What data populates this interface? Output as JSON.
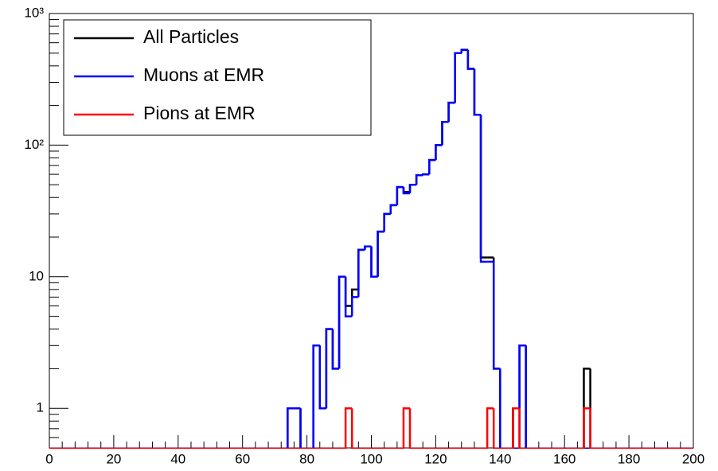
{
  "chart_data": {
    "type": "histogram",
    "log_y": true,
    "bins": [
      0,
      2,
      4,
      6,
      8,
      10,
      12,
      14,
      16,
      18,
      20,
      22,
      24,
      26,
      28,
      30,
      32,
      34,
      36,
      38,
      40,
      42,
      44,
      46,
      48,
      50,
      52,
      54,
      56,
      58,
      60,
      62,
      64,
      66,
      68,
      70,
      72,
      74,
      76,
      78,
      80,
      82,
      84,
      86,
      88,
      90,
      92,
      94,
      96,
      98,
      100,
      102,
      104,
      106,
      108,
      110,
      112,
      114,
      116,
      118,
      120,
      122,
      124,
      126,
      128,
      130,
      132,
      134,
      136,
      138,
      140,
      142,
      144,
      146,
      148,
      150,
      152,
      154,
      156,
      158,
      160,
      162,
      164,
      166,
      168,
      170,
      172,
      174,
      176,
      178,
      180,
      182,
      184,
      186,
      188,
      190,
      192,
      194,
      196,
      198,
      200
    ],
    "series": [
      {
        "name": "All Particles",
        "color": "#000000",
        "values": [
          0,
          0,
          0,
          0,
          0,
          0,
          0,
          0,
          0,
          0,
          0,
          0,
          0,
          0,
          0,
          0,
          0,
          0,
          0,
          0,
          0,
          0,
          0,
          0,
          0,
          0,
          0,
          0,
          0,
          0,
          0,
          0,
          0,
          0,
          0,
          0,
          0,
          1,
          1,
          0,
          0,
          3,
          1,
          4,
          2,
          10,
          6,
          8,
          16,
          17,
          10,
          22,
          30,
          35,
          48,
          44,
          50,
          59,
          60,
          77,
          100,
          150,
          210,
          500,
          530,
          380,
          170,
          14,
          14,
          2,
          0,
          0,
          1,
          3,
          0,
          0,
          0,
          0,
          0,
          0,
          0,
          0,
          0,
          2,
          0,
          0,
          0,
          0,
          0,
          0,
          0,
          0,
          0,
          0,
          0,
          0,
          0,
          0,
          0,
          0
        ]
      },
      {
        "name": "Muons at EMR",
        "color": "#0000ff",
        "values": [
          0,
          0,
          0,
          0,
          0,
          0,
          0,
          0,
          0,
          0,
          0,
          0,
          0,
          0,
          0,
          0,
          0,
          0,
          0,
          0,
          0,
          0,
          0,
          0,
          0,
          0,
          0,
          0,
          0,
          0,
          0,
          0,
          0,
          0,
          0,
          0,
          0,
          1,
          1,
          0,
          0,
          3,
          1,
          4,
          2,
          10,
          5,
          7,
          16,
          17,
          10,
          22,
          30,
          35,
          48,
          43,
          50,
          59,
          60,
          77,
          100,
          150,
          210,
          500,
          530,
          380,
          170,
          13,
          13,
          2,
          0,
          0,
          0,
          3,
          0,
          0,
          0,
          0,
          0,
          0,
          0,
          0,
          0,
          0,
          0,
          0,
          0,
          0,
          0,
          0,
          0,
          0,
          0,
          0,
          0,
          0,
          0,
          0,
          0,
          0
        ]
      },
      {
        "name": "Pions at EMR",
        "color": "#ff0000",
        "values": [
          0,
          0,
          0,
          0,
          0,
          0,
          0,
          0,
          0,
          0,
          0,
          0,
          0,
          0,
          0,
          0,
          0,
          0,
          0,
          0,
          0,
          0,
          0,
          0,
          0,
          0,
          0,
          0,
          0,
          0,
          0,
          0,
          0,
          0,
          0,
          0,
          0,
          0,
          0,
          0,
          0,
          0,
          0,
          0,
          0,
          0,
          1,
          0,
          0,
          0,
          0,
          0,
          0,
          0,
          0,
          1,
          0,
          0,
          0,
          0,
          0,
          0,
          0,
          0,
          0,
          0,
          0,
          0,
          1,
          0,
          0,
          0,
          1,
          0,
          0,
          0,
          0,
          0,
          0,
          0,
          0,
          0,
          0,
          1,
          0,
          0,
          0,
          0,
          0,
          0,
          0,
          0,
          0,
          0,
          0,
          0,
          0,
          0,
          0,
          0
        ]
      }
    ],
    "xlim": [
      0,
      200
    ],
    "xticks": [
      0,
      20,
      40,
      60,
      80,
      100,
      120,
      140,
      160,
      180,
      200
    ],
    "ylim": [
      0.5,
      1000
    ],
    "yticks": [
      1,
      10,
      {
        "value": 100,
        "label": "10²"
      },
      {
        "value": 1000,
        "label": "10³"
      }
    ],
    "legend": "top-left"
  }
}
